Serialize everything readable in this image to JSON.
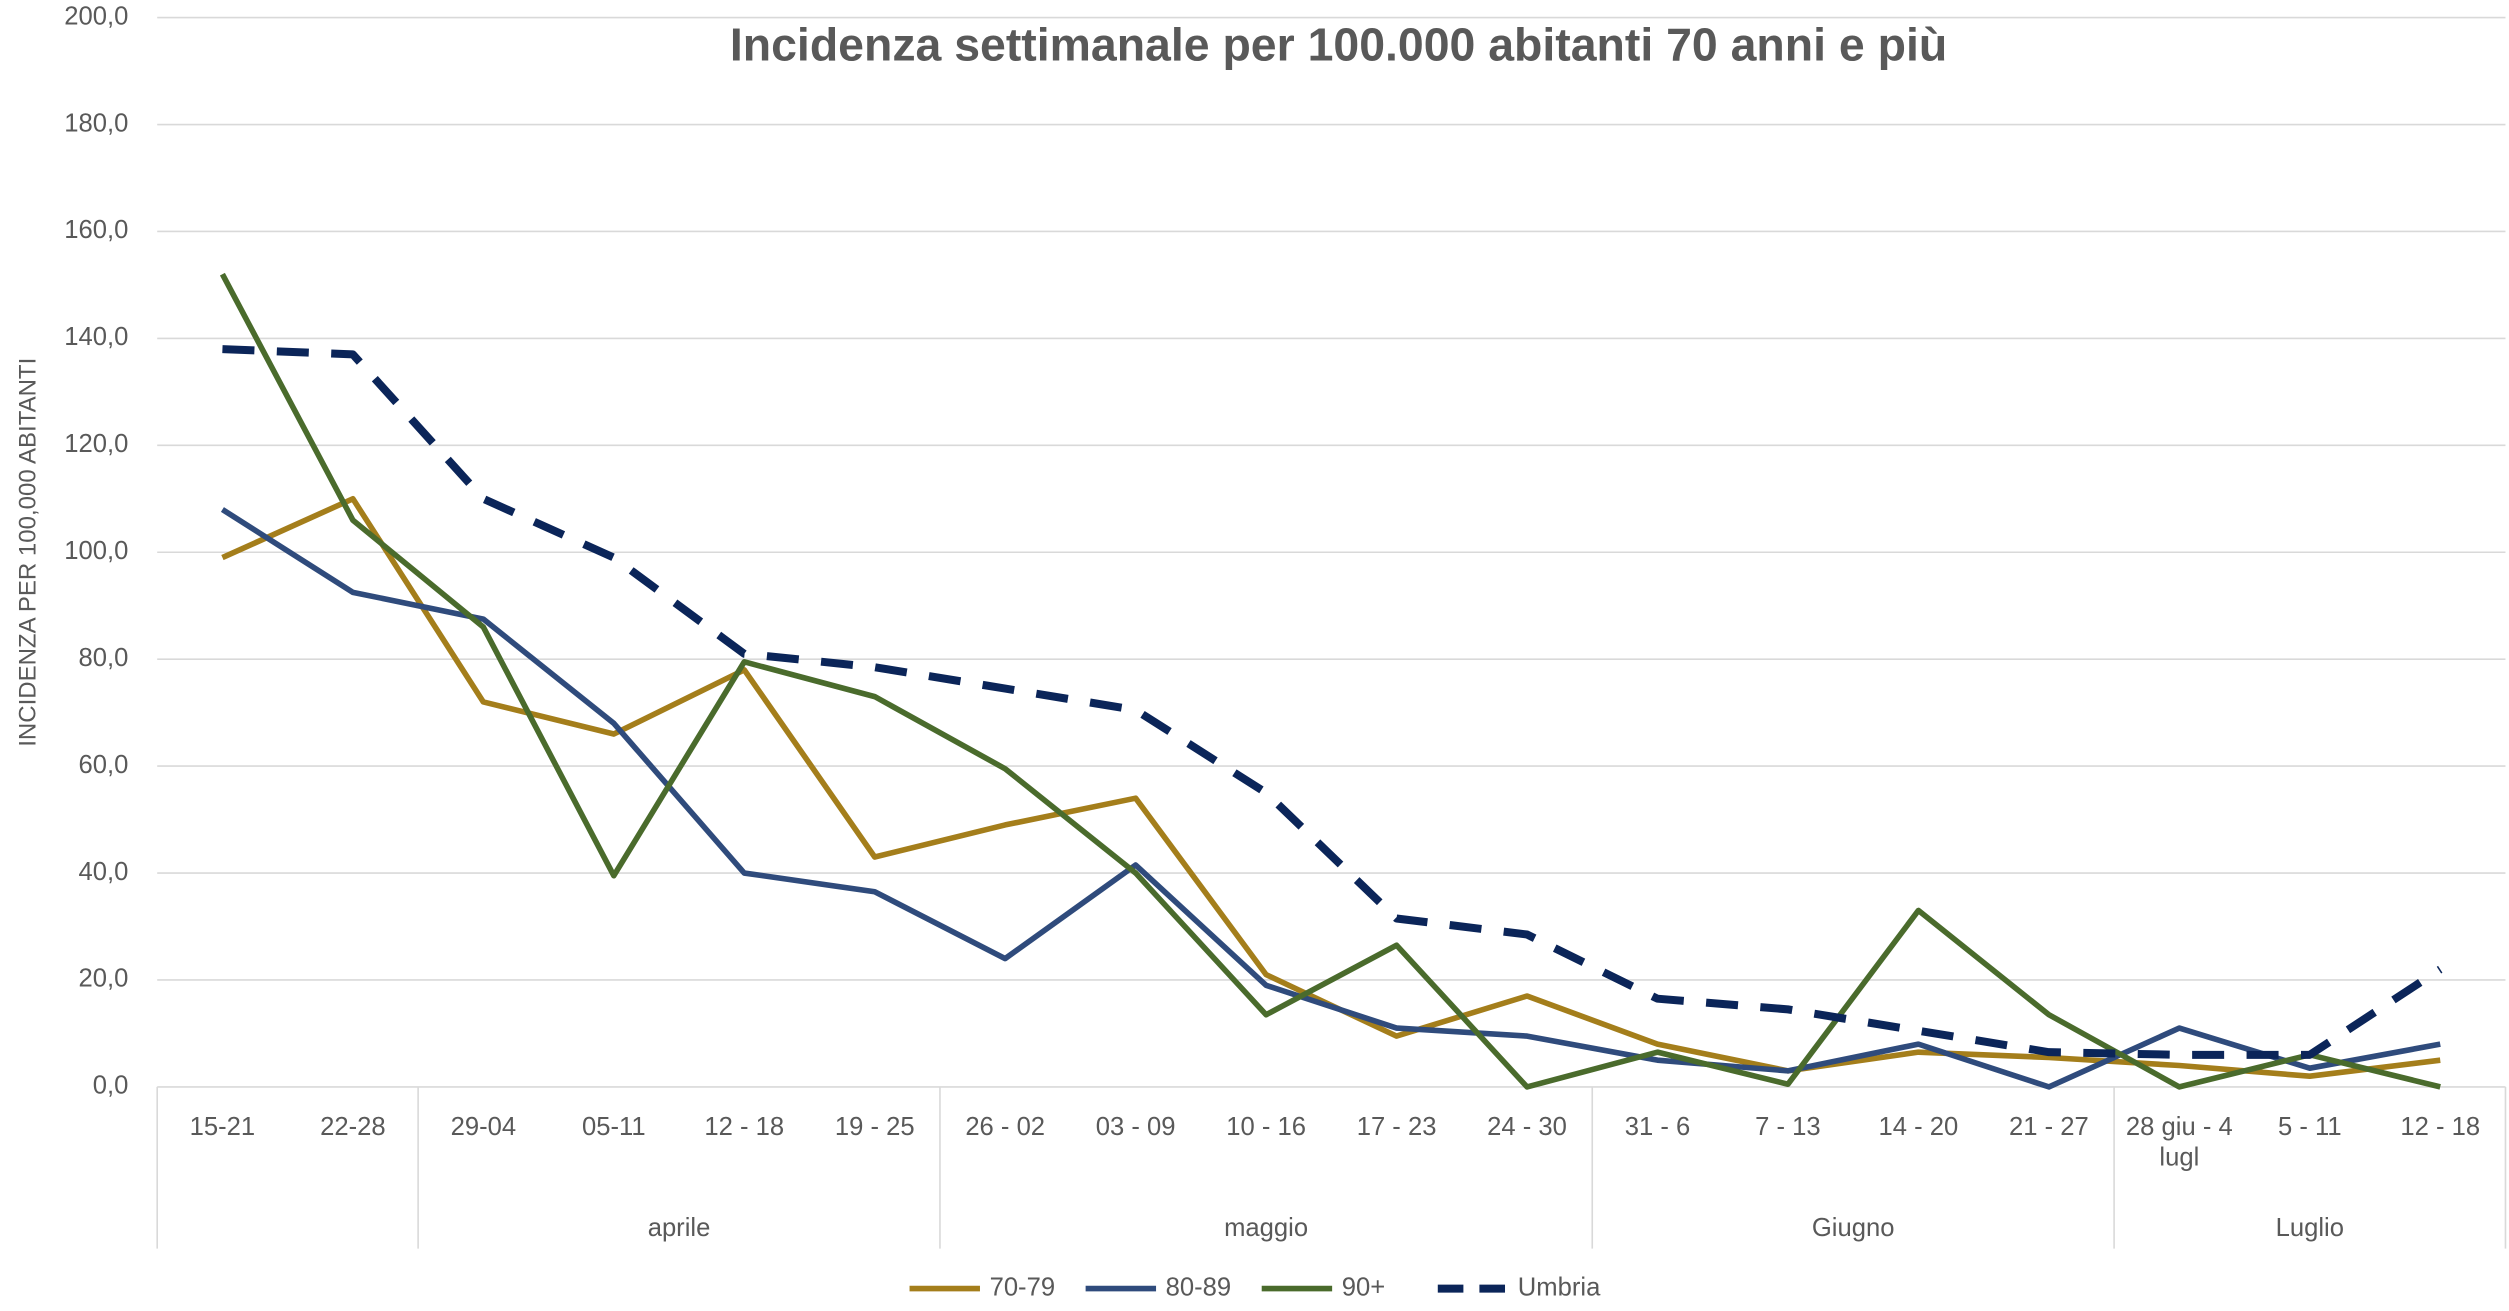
{
  "chart_data": {
    "type": "line",
    "title": "Incidenza settimanale per 100.000 abitanti 70 anni e più",
    "y_label": "INCIDENZA PER 100,000 ABITANTI",
    "groups": [
      {
        "label": null,
        "categories": [
          "15-21",
          "22-28"
        ]
      },
      {
        "label": "aprile",
        "categories": [
          "29-04",
          "05-11",
          "12 - 18",
          "19 - 25"
        ]
      },
      {
        "label": "maggio",
        "categories": [
          "26 - 02",
          "03 - 09",
          "10 - 16",
          "17 - 23",
          "24 - 30"
        ]
      },
      {
        "label": "Giugno",
        "categories": [
          "31 - 6",
          "7 - 13",
          "14 - 20",
          "21 - 27"
        ]
      },
      {
        "label": "Luglio",
        "categories": [
          "28 giu - 4 lugl",
          "5 - 11",
          "12 - 18"
        ]
      }
    ],
    "series": [
      {
        "name": "70-79",
        "color": "#a47e1b",
        "values": [
          99,
          110,
          72,
          66,
          78,
          43,
          49,
          54,
          21,
          9.5,
          17,
          8,
          3,
          6.5,
          5.5,
          4,
          2,
          5
        ]
      },
      {
        "name": "80-89",
        "color": "#2f4b7c",
        "values": [
          108,
          92.5,
          87.5,
          68,
          40,
          36.5,
          24,
          41.5,
          19,
          11,
          9.5,
          5,
          3,
          8,
          0,
          11,
          3.5,
          8
        ]
      },
      {
        "name": "90+",
        "color": "#4a6b2c",
        "values": [
          152,
          106,
          86,
          39.5,
          79.5,
          73,
          59.5,
          40,
          13.5,
          26.5,
          0,
          6.5,
          0.5,
          33,
          13.5,
          0,
          6,
          0
        ]
      },
      {
        "name": "Umbria",
        "color": "#0b2559",
        "dashed": true,
        "values": [
          138,
          137,
          110,
          99,
          81,
          78.5,
          74.5,
          70.5,
          55,
          31.5,
          28.5,
          16.5,
          14.5,
          10.5,
          6.5,
          6,
          6,
          22
        ]
      }
    ],
    "ylim": [
      0,
      200
    ],
    "yticks": [
      {
        "value": 0,
        "label": "0,0"
      },
      {
        "value": 20,
        "label": "20,0"
      },
      {
        "value": 40,
        "label": "40,0"
      },
      {
        "value": 60,
        "label": "60,0"
      },
      {
        "value": 80,
        "label": "80,0"
      },
      {
        "value": 100,
        "label": "100,0"
      },
      {
        "value": 120,
        "label": "120,0"
      },
      {
        "value": 140,
        "label": "140,0"
      },
      {
        "value": 160,
        "label": "160,0"
      },
      {
        "value": 180,
        "label": "180,0"
      },
      {
        "value": 200,
        "label": "200,0"
      }
    ],
    "grid": true,
    "legend": "bottom"
  }
}
